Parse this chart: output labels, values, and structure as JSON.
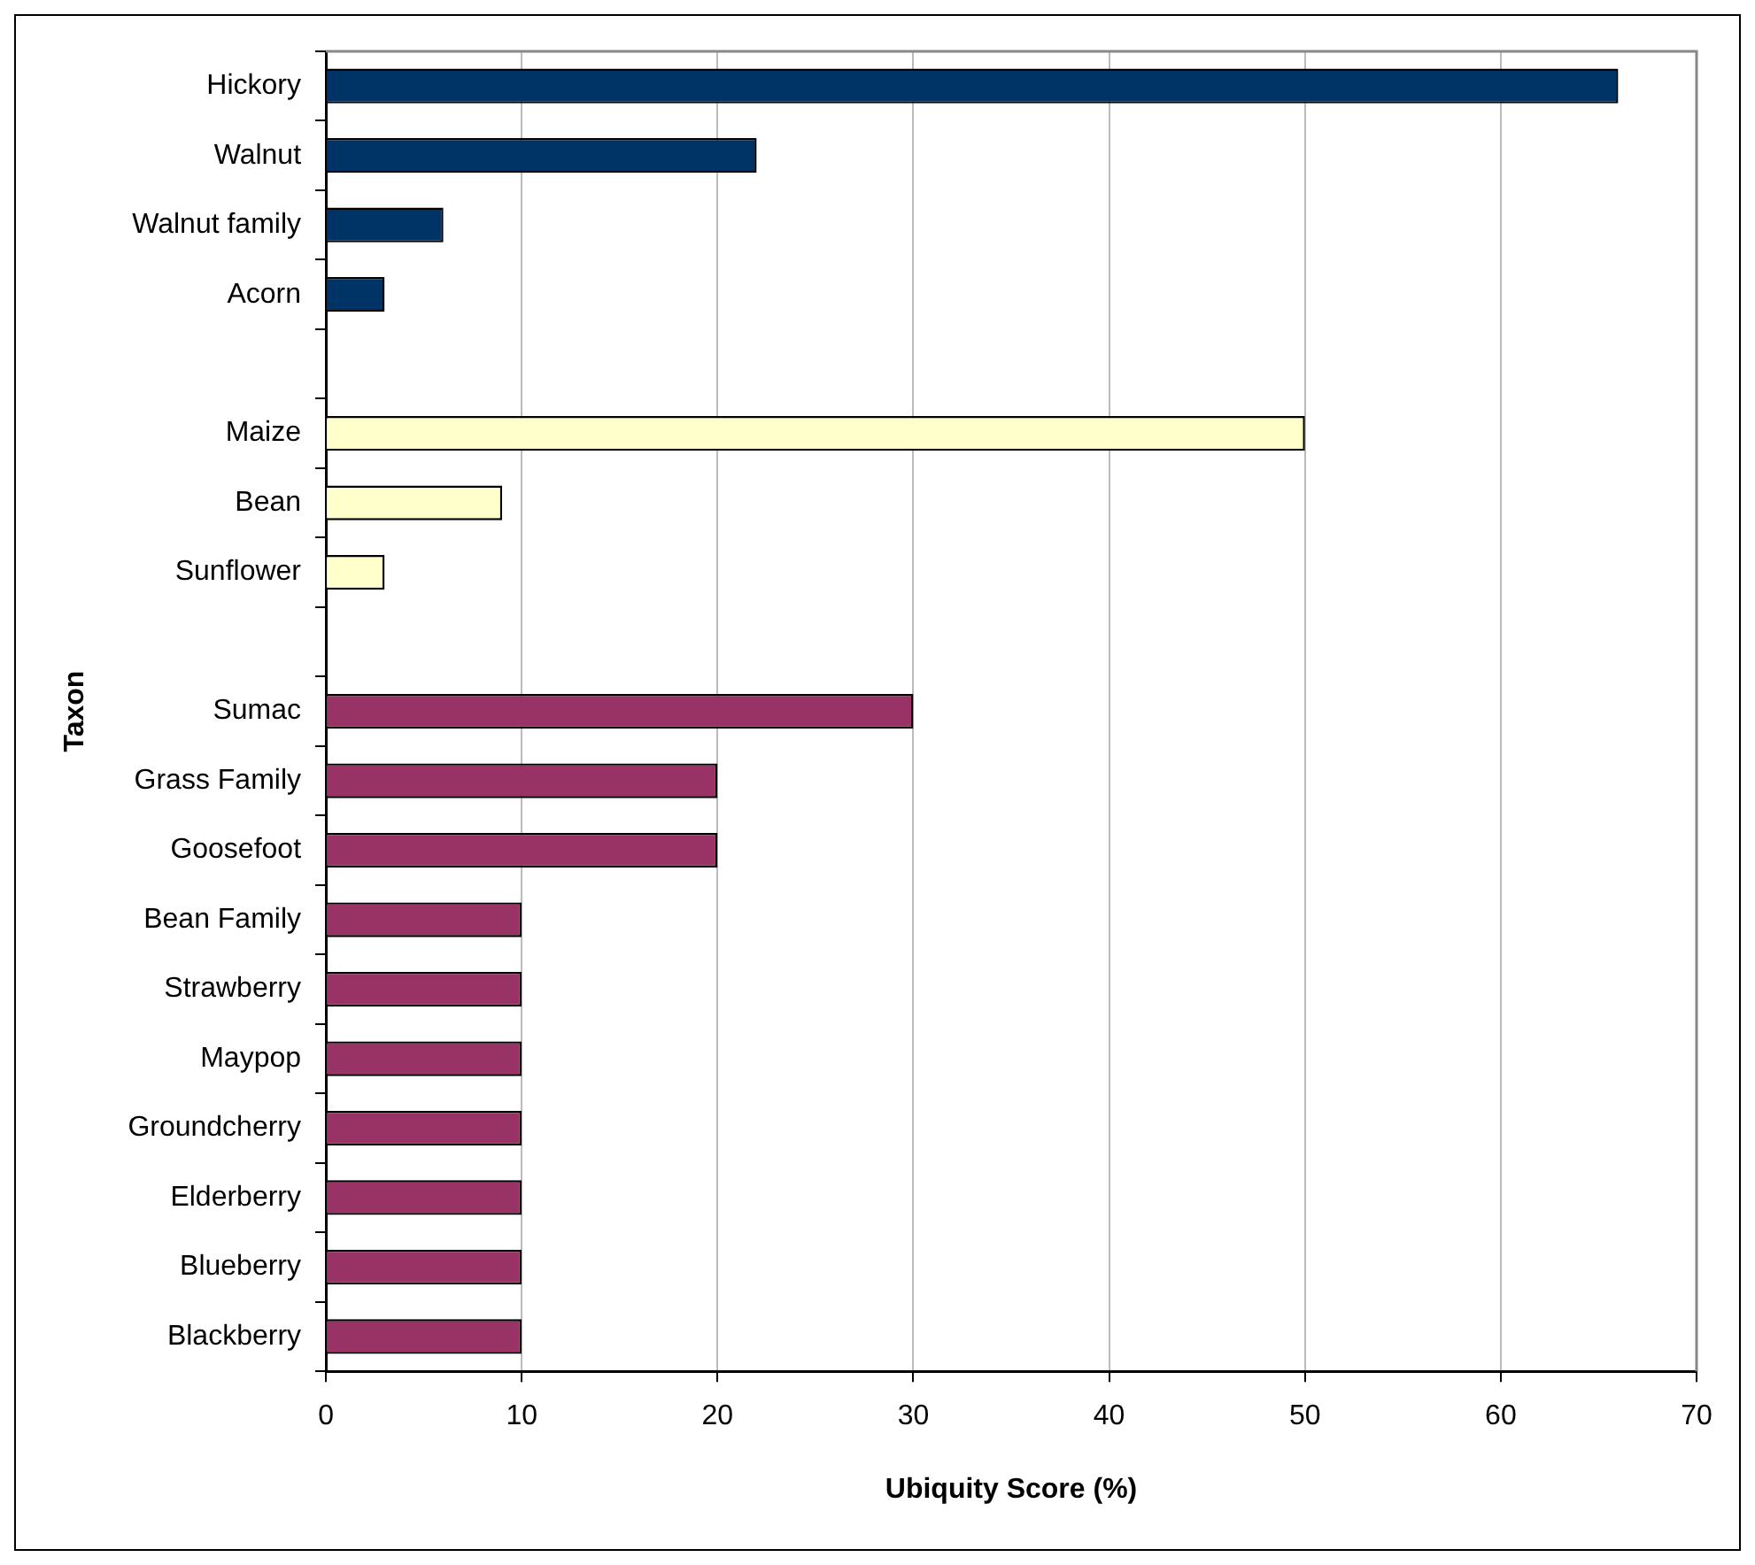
{
  "chart_data": {
    "type": "bar",
    "orientation": "horizontal",
    "xlabel": "Ubiquity Score (%)",
    "ylabel": "Taxon",
    "categories": [
      "Hickory",
      "Walnut",
      "Walnut family",
      "Acorn",
      null,
      "Maize",
      "Bean",
      "Sunflower",
      null,
      "Sumac",
      "Grass Family",
      "Goosefoot",
      "Bean Family",
      "Strawberry",
      "Maypop",
      "Groundcherry",
      "Elderberry",
      "Blueberry",
      "Blackberry"
    ],
    "values": [
      66,
      22,
      6,
      3,
      null,
      50,
      9,
      3,
      null,
      30,
      20,
      20,
      10,
      10,
      10,
      10,
      10,
      10,
      10
    ],
    "colors": [
      "#003366",
      "#003366",
      "#003366",
      "#003366",
      null,
      "#ffffcc",
      "#ffffcc",
      "#ffffcc",
      null,
      "#993366",
      "#993366",
      "#993366",
      "#993366",
      "#993366",
      "#993366",
      "#993366",
      "#993366",
      "#993366",
      "#993366"
    ],
    "xlim": [
      0,
      70
    ],
    "xticks": [
      0,
      10,
      20,
      30,
      40,
      50,
      60,
      70
    ],
    "grid": "x",
    "legend": false
  }
}
